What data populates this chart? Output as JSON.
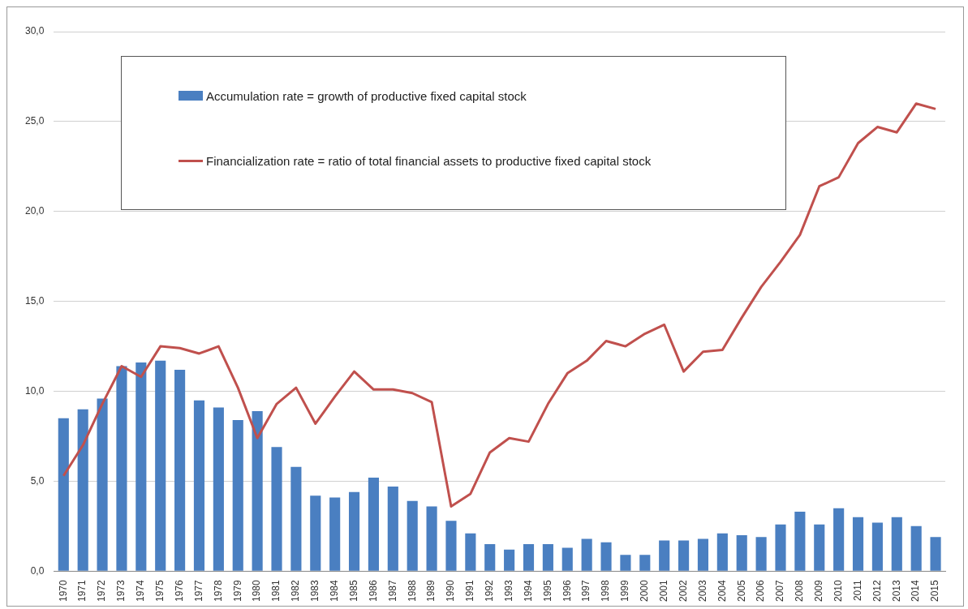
{
  "chart_data": {
    "type": "bar",
    "categories": [
      "1970",
      "1971",
      "1972",
      "1973",
      "1974",
      "1975",
      "1976",
      "1977",
      "1978",
      "1979",
      "1980",
      "1981",
      "1982",
      "1983",
      "1984",
      "1985",
      "1986",
      "1987",
      "1988",
      "1989",
      "1990",
      "1991",
      "1992",
      "1993",
      "1994",
      "1995",
      "1996",
      "1997",
      "1998",
      "1999",
      "2000",
      "2001",
      "2002",
      "2003",
      "2004",
      "2005",
      "2006",
      "2007",
      "2008",
      "2009",
      "2010",
      "2011",
      "2012",
      "2013",
      "2014",
      "2015"
    ],
    "series": [
      {
        "name": "Accumulation rate = growth of productive fixed capital stock",
        "color": "#4a7fc1",
        "values": [
          8.5,
          9.0,
          9.6,
          11.4,
          11.6,
          11.7,
          11.2,
          9.5,
          9.1,
          8.4,
          8.9,
          6.9,
          5.8,
          4.2,
          4.1,
          4.4,
          5.2,
          4.7,
          3.9,
          3.6,
          2.8,
          2.1,
          1.5,
          1.2,
          1.5,
          1.5,
          1.3,
          1.8,
          1.6,
          0.9,
          0.9,
          1.7,
          1.7,
          1.8,
          2.1,
          2.0,
          1.9,
          2.6,
          3.3,
          2.6,
          3.5,
          3.0,
          2.7,
          3.0,
          2.5,
          1.9
        ]
      },
      {
        "name": "Financialization rate = ratio of total financial assets to productive fixed capital stock",
        "type": "line",
        "color": "#c0504d",
        "values": [
          5.3,
          7.0,
          9.3,
          11.4,
          10.8,
          12.5,
          12.4,
          12.1,
          12.5,
          10.2,
          7.4,
          9.3,
          10.2,
          8.2,
          9.7,
          11.1,
          10.1,
          10.1,
          9.9,
          9.4,
          3.6,
          4.3,
          6.6,
          7.4,
          7.2,
          9.3,
          11.0,
          11.7,
          12.8,
          12.5,
          13.2,
          13.7,
          11.1,
          12.2,
          12.3,
          14.1,
          15.8,
          17.2,
          18.7,
          21.4,
          21.9,
          23.8,
          24.7,
          24.4,
          26.0,
          25.7
        ]
      }
    ],
    "ylim": [
      0,
      30
    ],
    "yticks": [
      {
        "value": 0,
        "label": "0,0"
      },
      {
        "value": 5,
        "label": "5,0"
      },
      {
        "value": 10,
        "label": "10,0"
      },
      {
        "value": 15,
        "label": "15,0"
      },
      {
        "value": 20,
        "label": "20,0"
      },
      {
        "value": 25,
        "label": "25,0"
      },
      {
        "value": 30,
        "label": "30,0"
      }
    ],
    "grid": "y",
    "legend": "top left",
    "marker": "none",
    "line_style": "solid"
  }
}
